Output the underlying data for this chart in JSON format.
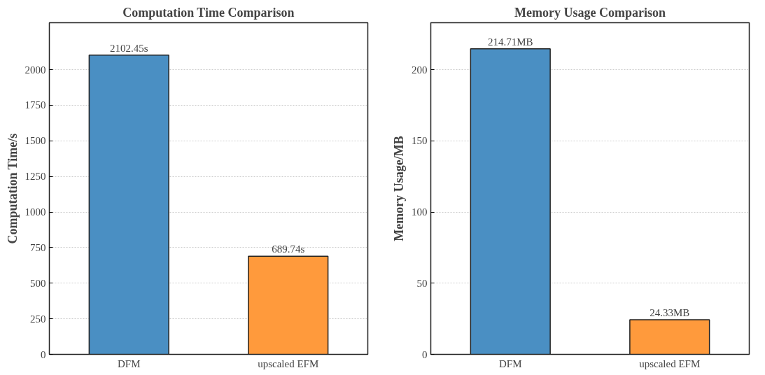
{
  "chart_data": [
    {
      "type": "bar",
      "title": "Computation Time Comparison",
      "ylabel": "Computation Time/s",
      "categories": [
        "DFM",
        "upscaled EFM"
      ],
      "values": [
        2102.45,
        689.74
      ],
      "colors": [
        "#4a8fc3",
        "#ff9a3c"
      ],
      "value_labels": [
        "2102.45s",
        "689.74s"
      ],
      "ylim": [
        0,
        2330
      ],
      "yticks": [
        0,
        250,
        500,
        750,
        1000,
        1250,
        1500,
        1750,
        2000
      ],
      "grid": "y"
    },
    {
      "type": "bar",
      "title": "Memory Usage Comparison",
      "ylabel": "Memory Usage/MB",
      "categories": [
        "DFM",
        "upscaled EFM"
      ],
      "values": [
        214.71,
        24.33
      ],
      "colors": [
        "#4a8fc3",
        "#ff9a3c"
      ],
      "value_labels": [
        "214.71MB",
        "24.33MB"
      ],
      "ylim": [
        0,
        233
      ],
      "yticks": [
        0,
        50,
        100,
        150,
        200
      ],
      "grid": "y"
    }
  ]
}
